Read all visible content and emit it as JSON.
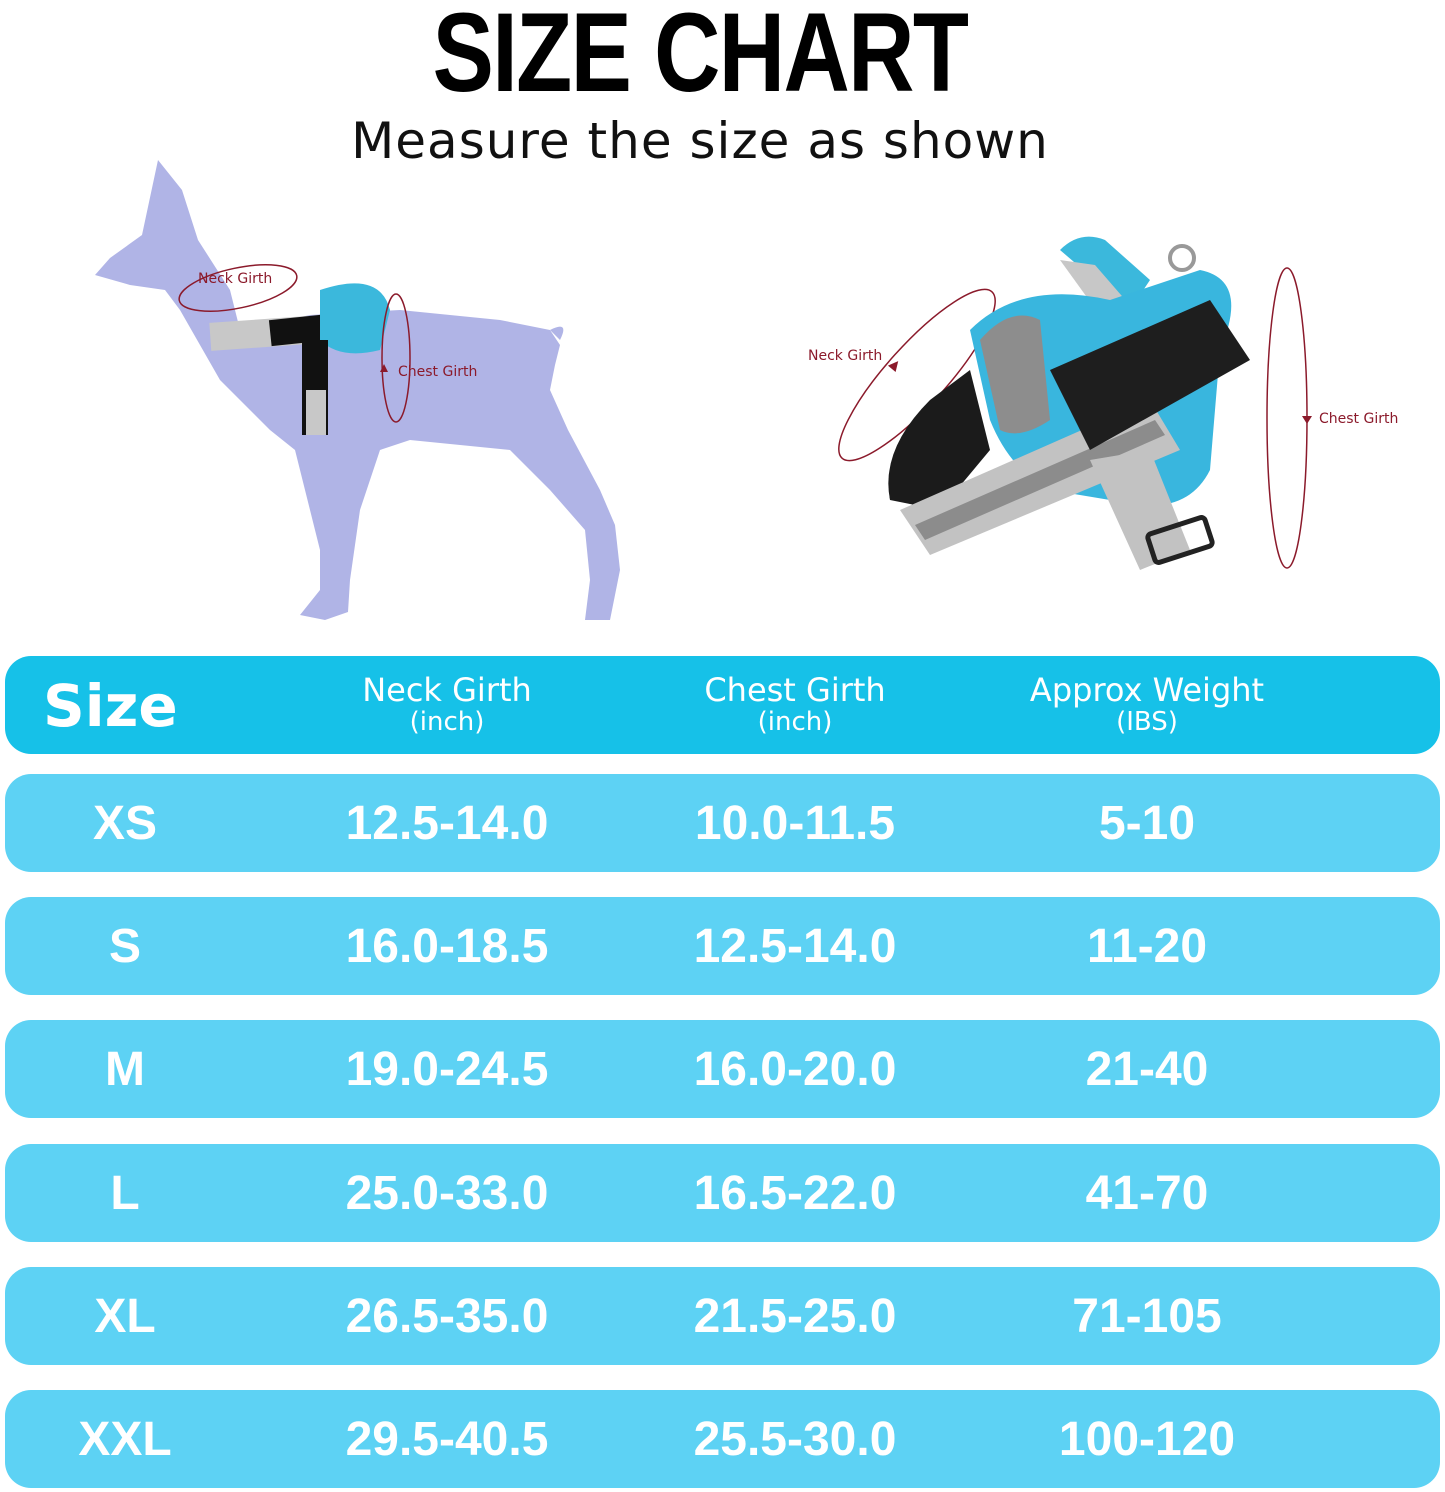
{
  "title": "SIZE CHART",
  "subtitle": "Measure the size as shown",
  "illustrations": {
    "dog_labels": {
      "neck": "Neck Girth",
      "chest": "Chest Girth"
    },
    "harness_labels": {
      "neck": "Neck Girth",
      "chest": "Chest Girth"
    }
  },
  "colors": {
    "header": "#16C1E8",
    "row": "#5DD2F4",
    "measure_line": "#8B1A2B",
    "dog": "#B0B4E6"
  },
  "table": {
    "headers": [
      {
        "label": "Size",
        "unit": ""
      },
      {
        "label": "Neck Girth",
        "unit": "(inch)"
      },
      {
        "label": "Chest Girth",
        "unit": "(inch)"
      },
      {
        "label": "Approx Weight",
        "unit": "(IBS)"
      }
    ],
    "rows": [
      [
        "XS",
        "12.5-14.0",
        "10.0-11.5",
        "5-10"
      ],
      [
        "S",
        "16.0-18.5",
        "12.5-14.0",
        "11-20"
      ],
      [
        "M",
        "19.0-24.5",
        "16.0-20.0",
        "21-40"
      ],
      [
        "L",
        "25.0-33.0",
        "16.5-22.0",
        "41-70"
      ],
      [
        "XL",
        "26.5-35.0",
        "21.5-25.0",
        "71-105"
      ],
      [
        "XXL",
        "29.5-40.5",
        "25.5-30.0",
        "100-120"
      ]
    ]
  }
}
